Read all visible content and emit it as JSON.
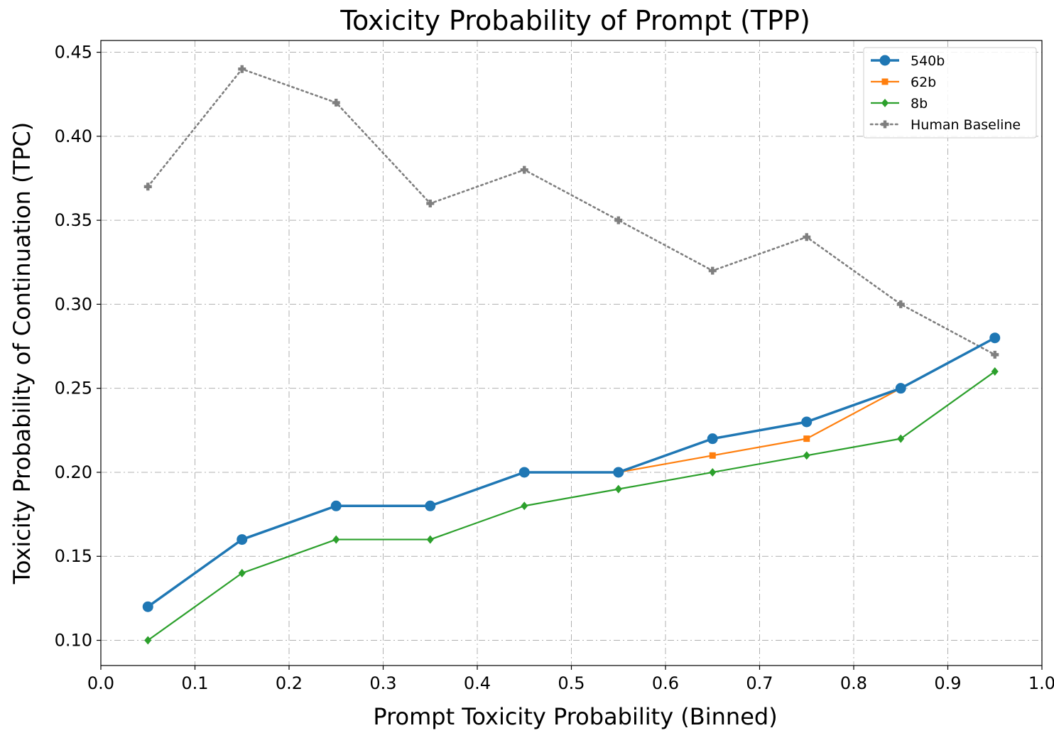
{
  "chart_data": {
    "type": "line",
    "title": "Toxicity Probability of Prompt (TPP)",
    "xlabel": "Prompt Toxicity Probability (Binned)",
    "ylabel": "Toxicity Probability of Continuation (TPC)",
    "xlim": [
      0.0,
      1.0
    ],
    "ylim": [
      0.085,
      0.457
    ],
    "xticks": [
      "0.0",
      "0.1",
      "0.2",
      "0.3",
      "0.4",
      "0.5",
      "0.6",
      "0.7",
      "0.8",
      "0.9",
      "1.0"
    ],
    "yticks": [
      "0.10",
      "0.15",
      "0.20",
      "0.25",
      "0.30",
      "0.35",
      "0.40",
      "0.45"
    ],
    "grid": true,
    "legend_position": "top-right",
    "x": [
      0.05,
      0.15,
      0.25,
      0.35,
      0.45,
      0.55,
      0.65,
      0.75,
      0.85,
      0.95
    ],
    "series": [
      {
        "name": "540b",
        "values": [
          0.12,
          0.16,
          0.18,
          0.18,
          0.2,
          0.2,
          0.22,
          0.23,
          0.25,
          0.28
        ],
        "color": "#1f77b4",
        "marker": "circle",
        "line_style": "solid"
      },
      {
        "name": "62b",
        "values": [
          0.12,
          0.16,
          0.18,
          0.18,
          0.2,
          0.2,
          0.21,
          0.22,
          0.25,
          0.28
        ],
        "color": "#ff7f0e",
        "marker": "square",
        "line_style": "solid"
      },
      {
        "name": "8b",
        "values": [
          0.1,
          0.14,
          0.16,
          0.16,
          0.18,
          0.19,
          0.2,
          0.21,
          0.22,
          0.26
        ],
        "color": "#2ca02c",
        "marker": "diamond",
        "line_style": "solid"
      },
      {
        "name": "Human Baseline",
        "values": [
          0.37,
          0.44,
          0.42,
          0.36,
          0.38,
          0.35,
          0.32,
          0.34,
          0.3,
          0.27
        ],
        "color": "#7f7f7f",
        "marker": "plus",
        "line_style": "dotted"
      }
    ]
  }
}
